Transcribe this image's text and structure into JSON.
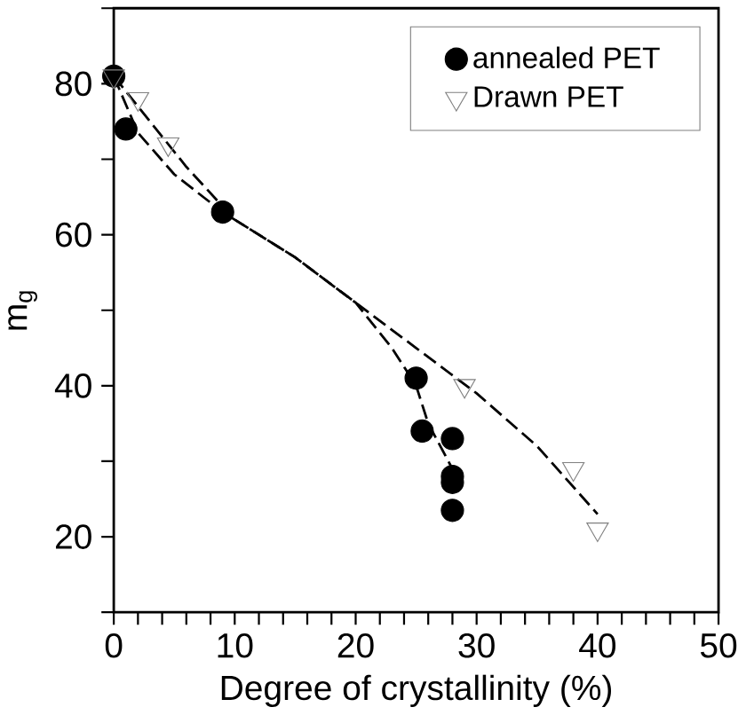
{
  "chart_data": {
    "type": "scatter",
    "xlabel": "Degree of crystallinity (%)",
    "ylabel": "m$_{g}$",
    "xlim": [
      0,
      50
    ],
    "ylim": [
      10,
      90
    ],
    "xticks": [
      0,
      {
        "value": 2,
        "label": null
      },
      {
        "value": 4,
        "label": null
      },
      {
        "value": 6,
        "label": null
      },
      {
        "value": 8,
        "label": null
      },
      10,
      {
        "value": 12,
        "label": null
      },
      {
        "value": 14,
        "label": null
      },
      {
        "value": 16,
        "label": null
      },
      {
        "value": 18,
        "label": null
      },
      20,
      {
        "value": 22,
        "label": null
      },
      {
        "value": 24,
        "label": null
      },
      {
        "value": 26,
        "label": null
      },
      {
        "value": 28,
        "label": null
      },
      30,
      {
        "value": 32,
        "label": null
      },
      {
        "value": 34,
        "label": null
      },
      {
        "value": 36,
        "label": null
      },
      {
        "value": 38,
        "label": null
      },
      40,
      {
        "value": 42,
        "label": null
      },
      {
        "value": 44,
        "label": null
      },
      {
        "value": 46,
        "label": null
      },
      {
        "value": 48,
        "label": null
      },
      50
    ],
    "yticks": [
      {
        "value": 10,
        "label": null
      },
      20,
      {
        "value": 30,
        "label": null
      },
      40,
      {
        "value": 50,
        "label": null
      },
      60,
      {
        "value": 70,
        "label": null
      },
      80,
      {
        "value": 90,
        "label": null
      }
    ],
    "legend": "top right",
    "grid": false,
    "series": [
      {
        "name": "annealed PET",
        "marker": "circle",
        "color": "#000000",
        "x": [
          0,
          1,
          9,
          25,
          25.5,
          28,
          28,
          28,
          28
        ],
        "values": [
          81,
          74,
          63,
          41,
          34,
          33,
          28,
          27.2,
          23.5
        ]
      },
      {
        "name": "Drawn PET",
        "marker": "triangle",
        "color": "#808080",
        "x": [
          0,
          2,
          4.5,
          29,
          38,
          40
        ],
        "values": [
          81,
          78,
          72,
          40,
          29,
          21
        ]
      },
      {
        "type": "line",
        "line_style": "dashed",
        "marker": "none",
        "color": "#000000",
        "x": [
          0,
          2,
          5,
          9,
          15,
          20,
          23,
          25,
          26,
          28
        ],
        "values": [
          81,
          73.5,
          68,
          63,
          57,
          51,
          45,
          40,
          35,
          29
        ]
      },
      {
        "type": "line",
        "line_style": "dashed",
        "marker": "none",
        "color": "#000000",
        "x": [
          0,
          3,
          6,
          10,
          15,
          20,
          25,
          30,
          35,
          40
        ],
        "values": [
          81,
          75,
          69,
          62,
          57,
          51,
          45,
          39,
          32,
          23
        ]
      }
    ]
  }
}
